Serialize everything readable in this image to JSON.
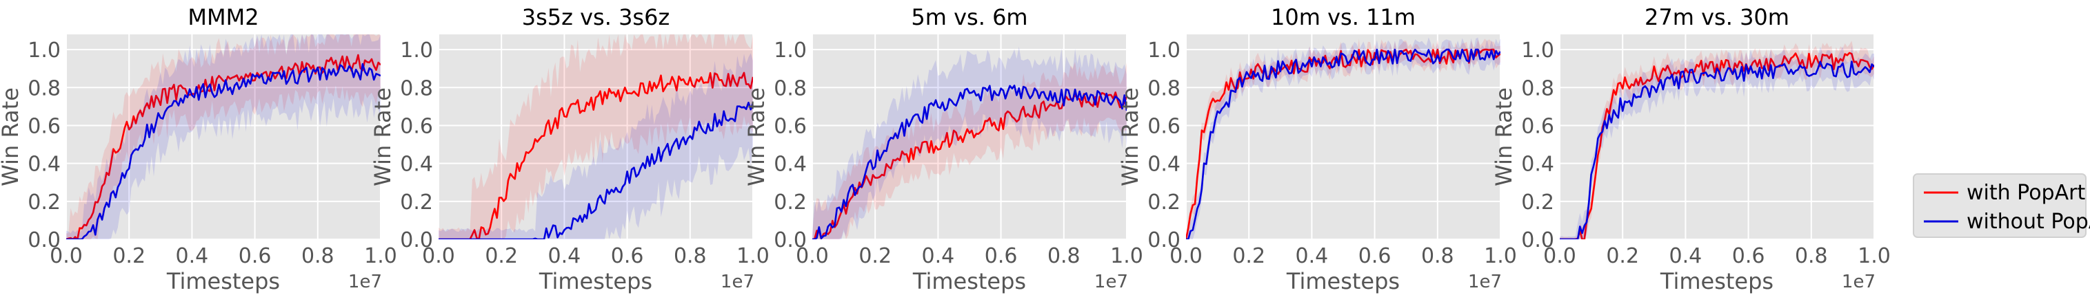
{
  "figure": {
    "legend": [
      {
        "label": "with PopArt",
        "color": "#ff0000"
      },
      {
        "label": "without PopArt",
        "color": "#0000dd"
      }
    ]
  },
  "chart_data": [
    {
      "type": "line",
      "title": "MMM2",
      "xlabel": "Timesteps",
      "ylabel": "Win Rate",
      "x_exponent_label": "1e7",
      "xlim": [
        0,
        1.0
      ],
      "ylim": [
        0,
        1.08
      ],
      "xticks": [
        "0.0",
        "0.2",
        "0.4",
        "0.6",
        "0.8",
        "1.0"
      ],
      "yticks": [
        "0.0",
        "0.2",
        "0.4",
        "0.6",
        "0.8",
        "1.0"
      ],
      "grid": true,
      "x": [
        0.0,
        0.05,
        0.1,
        0.15,
        0.2,
        0.25,
        0.3,
        0.4,
        0.5,
        0.6,
        0.7,
        0.8,
        0.9,
        1.0
      ],
      "series": [
        {
          "name": "with PopArt",
          "color": "#ff0000",
          "values": [
            0.0,
            0.03,
            0.2,
            0.45,
            0.62,
            0.7,
            0.75,
            0.8,
            0.84,
            0.87,
            0.89,
            0.91,
            0.93,
            0.92
          ],
          "band": 0.2
        },
        {
          "name": "without PopArt",
          "color": "#0000dd",
          "values": [
            0.0,
            0.0,
            0.08,
            0.22,
            0.4,
            0.55,
            0.65,
            0.76,
            0.8,
            0.83,
            0.85,
            0.87,
            0.89,
            0.88
          ],
          "band": 0.25
        }
      ]
    },
    {
      "type": "line",
      "title": "3s5z vs. 3s6z",
      "xlabel": "Timesteps",
      "ylabel": "Win Rate",
      "x_exponent_label": "1e7",
      "xlim": [
        0,
        1.0
      ],
      "ylim": [
        0,
        1.08
      ],
      "xticks": [
        "0.0",
        "0.2",
        "0.4",
        "0.6",
        "0.8",
        "1.0"
      ],
      "yticks": [
        "0.0",
        "0.2",
        "0.4",
        "0.6",
        "0.8",
        "1.0"
      ],
      "grid": true,
      "x": [
        0.0,
        0.05,
        0.1,
        0.15,
        0.2,
        0.25,
        0.3,
        0.4,
        0.5,
        0.6,
        0.7,
        0.8,
        0.9,
        1.0
      ],
      "series": [
        {
          "name": "with PopArt",
          "color": "#ff0000",
          "values": [
            0.0,
            0.0,
            0.0,
            0.05,
            0.2,
            0.38,
            0.52,
            0.66,
            0.73,
            0.78,
            0.82,
            0.83,
            0.84,
            0.84
          ],
          "band": 0.32
        },
        {
          "name": "without PopArt",
          "color": "#0000dd",
          "values": [
            0.0,
            0.0,
            0.0,
            0.0,
            0.0,
            0.0,
            0.0,
            0.06,
            0.18,
            0.32,
            0.44,
            0.55,
            0.64,
            0.7
          ],
          "band": 0.3
        }
      ]
    },
    {
      "type": "line",
      "title": "5m vs. 6m",
      "xlabel": "Timesteps",
      "ylabel": "Win Rate",
      "x_exponent_label": "1e7",
      "xlim": [
        0,
        1.0
      ],
      "ylim": [
        0,
        1.08
      ],
      "xticks": [
        "0.0",
        "0.2",
        "0.4",
        "0.6",
        "0.8",
        "1.0"
      ],
      "yticks": [
        "0.0",
        "0.2",
        "0.4",
        "0.6",
        "0.8",
        "1.0"
      ],
      "grid": true,
      "x": [
        0.0,
        0.05,
        0.1,
        0.15,
        0.2,
        0.25,
        0.3,
        0.4,
        0.5,
        0.6,
        0.7,
        0.8,
        0.9,
        1.0
      ],
      "series": [
        {
          "name": "with PopArt",
          "color": "#ff0000",
          "values": [
            0.0,
            0.05,
            0.15,
            0.26,
            0.34,
            0.4,
            0.44,
            0.5,
            0.57,
            0.62,
            0.67,
            0.71,
            0.73,
            0.74
          ],
          "band": 0.18
        },
        {
          "name": "without PopArt",
          "color": "#0000dd",
          "values": [
            0.0,
            0.07,
            0.18,
            0.3,
            0.42,
            0.52,
            0.6,
            0.7,
            0.76,
            0.78,
            0.77,
            0.75,
            0.74,
            0.72
          ],
          "band": 0.22
        }
      ]
    },
    {
      "type": "line",
      "title": "10m vs. 11m",
      "xlabel": "Timesteps",
      "ylabel": "Win Rate",
      "x_exponent_label": "1e7",
      "xlim": [
        0,
        1.0
      ],
      "ylim": [
        0,
        1.08
      ],
      "xticks": [
        "0.0",
        "0.2",
        "0.4",
        "0.6",
        "0.8",
        "1.0"
      ],
      "yticks": [
        "0.0",
        "0.2",
        "0.4",
        "0.6",
        "0.8",
        "1.0"
      ],
      "grid": true,
      "x": [
        0.0,
        0.03,
        0.05,
        0.08,
        0.1,
        0.15,
        0.2,
        0.3,
        0.4,
        0.5,
        0.6,
        0.7,
        0.8,
        0.9,
        1.0
      ],
      "series": [
        {
          "name": "with PopArt",
          "color": "#ff0000",
          "values": [
            0.0,
            0.2,
            0.55,
            0.68,
            0.74,
            0.82,
            0.87,
            0.91,
            0.93,
            0.95,
            0.96,
            0.96,
            0.97,
            0.97,
            0.97
          ],
          "band": 0.06
        },
        {
          "name": "without PopArt",
          "color": "#0000dd",
          "values": [
            0.0,
            0.08,
            0.3,
            0.55,
            0.65,
            0.78,
            0.86,
            0.9,
            0.93,
            0.95,
            0.96,
            0.97,
            0.97,
            0.98,
            0.97
          ],
          "band": 0.07
        }
      ]
    },
    {
      "type": "line",
      "title": "27m vs. 30m",
      "xlabel": "Timesteps",
      "ylabel": "Win Rate",
      "x_exponent_label": "1e7",
      "xlim": [
        0,
        1.0
      ],
      "ylim": [
        0,
        1.08
      ],
      "xticks": [
        "0.0",
        "0.2",
        "0.4",
        "0.6",
        "0.8",
        "1.0"
      ],
      "yticks": [
        "0.0",
        "0.2",
        "0.4",
        "0.6",
        "0.8",
        "1.0"
      ],
      "grid": true,
      "x": [
        0.0,
        0.05,
        0.08,
        0.1,
        0.12,
        0.15,
        0.18,
        0.2,
        0.3,
        0.4,
        0.5,
        0.6,
        0.7,
        0.8,
        0.9,
        1.0
      ],
      "series": [
        {
          "name": "with PopArt",
          "color": "#ff0000",
          "values": [
            0.0,
            0.0,
            0.02,
            0.15,
            0.45,
            0.65,
            0.78,
            0.82,
            0.87,
            0.89,
            0.91,
            0.92,
            0.93,
            0.94,
            0.94,
            0.94
          ],
          "band": 0.07
        },
        {
          "name": "without PopArt",
          "color": "#0000dd",
          "values": [
            0.0,
            0.0,
            0.05,
            0.3,
            0.52,
            0.6,
            0.66,
            0.72,
            0.8,
            0.85,
            0.87,
            0.88,
            0.89,
            0.9,
            0.9,
            0.88
          ],
          "band": 0.09
        }
      ]
    }
  ]
}
